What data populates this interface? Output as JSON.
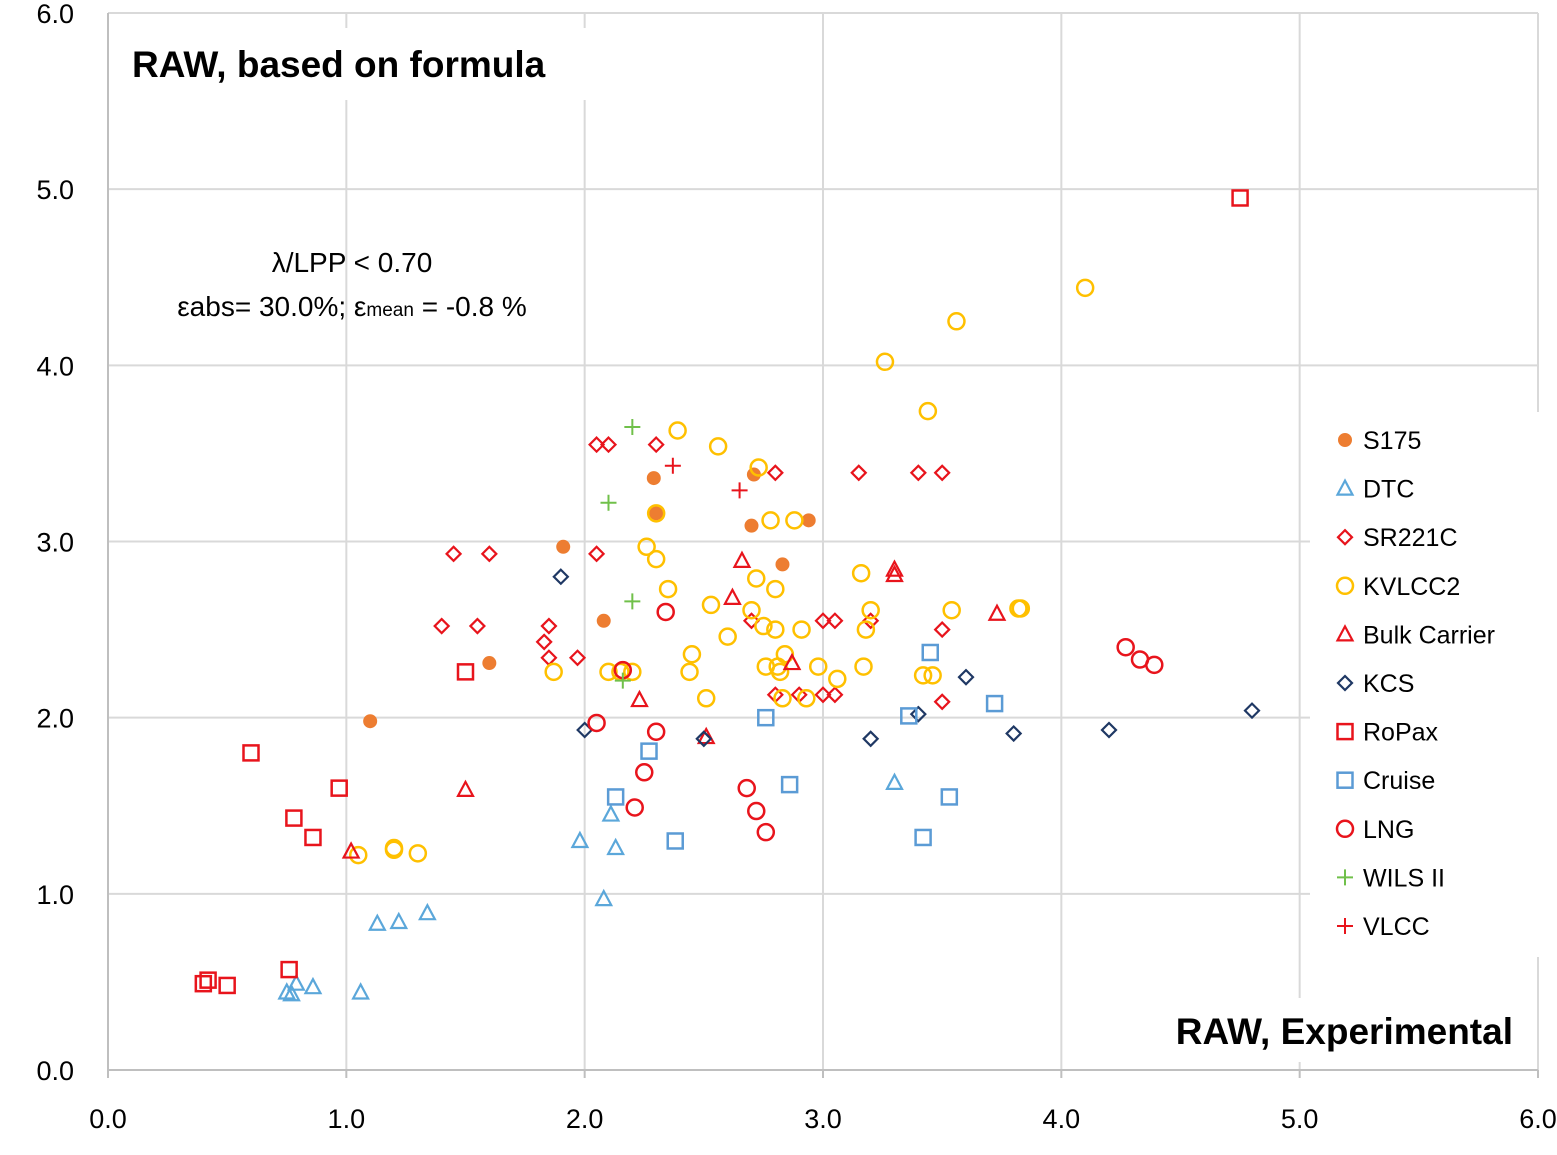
{
  "chart_data": {
    "type": "scatter",
    "title": "RAW, based on formula",
    "xlabel": "RAW, Experimental",
    "ylabel": "",
    "xlim": [
      0,
      6
    ],
    "ylim": [
      0,
      6
    ],
    "grid": true,
    "legend_position": "right",
    "x_ticks": [
      "0.0",
      "1.0",
      "2.0",
      "3.0",
      "4.0",
      "5.0",
      "6.0"
    ],
    "y_ticks": [
      "0.0",
      "1.0",
      "2.0",
      "3.0",
      "4.0",
      "5.0",
      "6.0"
    ],
    "annotation": {
      "line1": "λ/LPP < 0.70",
      "line2_a": "εabs= 30.0%; ε",
      "line2_sub": "mean",
      "line2_b": " = -0.8 %"
    },
    "series": [
      {
        "name": "S175",
        "marker": "filled-circle",
        "color": "#ED7D31",
        "points": [
          [
            1.1,
            1.98
          ],
          [
            1.6,
            2.31
          ],
          [
            1.91,
            2.97
          ],
          [
            2.08,
            2.55
          ],
          [
            2.29,
            3.36
          ],
          [
            2.3,
            3.16
          ],
          [
            2.7,
            3.09
          ],
          [
            2.71,
            3.38
          ],
          [
            2.83,
            2.87
          ],
          [
            2.94,
            3.12
          ]
        ]
      },
      {
        "name": "DTC",
        "marker": "triangle",
        "color": "#5BA7DA",
        "points": [
          [
            0.75,
            0.44
          ],
          [
            0.77,
            0.43
          ],
          [
            0.79,
            0.49
          ],
          [
            0.86,
            0.47
          ],
          [
            1.06,
            0.44
          ],
          [
            1.13,
            0.83
          ],
          [
            1.22,
            0.84
          ],
          [
            1.34,
            0.89
          ],
          [
            1.98,
            1.3
          ],
          [
            2.08,
            0.97
          ],
          [
            2.11,
            1.45
          ],
          [
            2.13,
            1.26
          ],
          [
            3.3,
            1.63
          ]
        ]
      },
      {
        "name": "SR221C",
        "marker": "diamond",
        "color": "#E8141C",
        "points": [
          [
            1.4,
            2.52
          ],
          [
            1.45,
            2.93
          ],
          [
            1.55,
            2.52
          ],
          [
            1.6,
            2.93
          ],
          [
            1.83,
            2.43
          ],
          [
            1.85,
            2.52
          ],
          [
            1.85,
            2.34
          ],
          [
            1.97,
            2.34
          ],
          [
            2.05,
            3.55
          ],
          [
            2.05,
            2.93
          ],
          [
            2.1,
            3.55
          ],
          [
            2.3,
            3.55
          ],
          [
            2.7,
            2.55
          ],
          [
            2.8,
            3.39
          ],
          [
            2.8,
            2.13
          ],
          [
            2.9,
            2.13
          ],
          [
            3.0,
            2.55
          ],
          [
            3.0,
            2.13
          ],
          [
            3.05,
            2.55
          ],
          [
            3.05,
            2.13
          ],
          [
            3.15,
            3.39
          ],
          [
            3.2,
            2.55
          ],
          [
            3.4,
            3.39
          ],
          [
            3.5,
            3.39
          ],
          [
            3.5,
            2.5
          ],
          [
            3.5,
            2.09
          ]
        ]
      },
      {
        "name": "KVLCC2",
        "marker": "circle",
        "color": "#FFC000",
        "points": [
          [
            1.05,
            1.22
          ],
          [
            1.2,
            1.26
          ],
          [
            1.2,
            1.25
          ],
          [
            1.3,
            1.23
          ],
          [
            1.87,
            2.26
          ],
          [
            2.1,
            2.26
          ],
          [
            2.15,
            2.26
          ],
          [
            2.2,
            2.26
          ],
          [
            2.26,
            2.97
          ],
          [
            2.3,
            3.16
          ],
          [
            2.3,
            2.9
          ],
          [
            2.35,
            2.73
          ],
          [
            2.39,
            3.63
          ],
          [
            2.44,
            2.26
          ],
          [
            2.45,
            2.36
          ],
          [
            2.51,
            2.11
          ],
          [
            2.53,
            2.64
          ],
          [
            2.56,
            3.54
          ],
          [
            2.6,
            2.46
          ],
          [
            2.7,
            2.61
          ],
          [
            2.72,
            2.79
          ],
          [
            2.73,
            3.42
          ],
          [
            2.75,
            2.52
          ],
          [
            2.76,
            2.29
          ],
          [
            2.78,
            3.12
          ],
          [
            2.8,
            2.5
          ],
          [
            2.8,
            2.73
          ],
          [
            2.81,
            2.29
          ],
          [
            2.82,
            2.26
          ],
          [
            2.83,
            2.11
          ],
          [
            2.84,
            2.36
          ],
          [
            2.88,
            3.12
          ],
          [
            2.91,
            2.5
          ],
          [
            2.93,
            2.11
          ],
          [
            2.98,
            2.29
          ],
          [
            3.06,
            2.22
          ],
          [
            3.16,
            2.82
          ],
          [
            3.17,
            2.29
          ],
          [
            3.18,
            2.5
          ],
          [
            3.2,
            2.61
          ],
          [
            3.26,
            4.02
          ],
          [
            3.42,
            2.24
          ],
          [
            3.44,
            3.74
          ],
          [
            3.46,
            2.24
          ],
          [
            3.54,
            2.61
          ],
          [
            3.56,
            4.25
          ],
          [
            3.82,
            2.62
          ],
          [
            3.83,
            2.62
          ],
          [
            4.1,
            4.44
          ]
        ]
      },
      {
        "name": "Bulk Carrier",
        "marker": "triangle",
        "color": "#E8141C",
        "points": [
          [
            1.02,
            1.24
          ],
          [
            1.5,
            1.59
          ],
          [
            2.23,
            2.1
          ],
          [
            2.51,
            1.89
          ],
          [
            2.62,
            2.68
          ],
          [
            2.66,
            2.89
          ],
          [
            2.87,
            2.31
          ],
          [
            3.3,
            2.84
          ],
          [
            3.3,
            2.81
          ],
          [
            3.73,
            2.59
          ]
        ]
      },
      {
        "name": "KCS",
        "marker": "diamond",
        "color": "#1F3864",
        "points": [
          [
            1.9,
            2.8
          ],
          [
            2.0,
            1.93
          ],
          [
            2.5,
            1.88
          ],
          [
            3.2,
            1.88
          ],
          [
            3.4,
            2.02
          ],
          [
            3.6,
            2.23
          ],
          [
            3.8,
            1.91
          ],
          [
            4.2,
            1.93
          ],
          [
            4.8,
            2.04
          ]
        ]
      },
      {
        "name": "RoPax",
        "marker": "square",
        "color": "#E8141C",
        "points": [
          [
            0.4,
            0.49
          ],
          [
            0.42,
            0.51
          ],
          [
            0.5,
            0.48
          ],
          [
            0.6,
            1.8
          ],
          [
            0.76,
            0.57
          ],
          [
            0.78,
            1.43
          ],
          [
            0.86,
            1.32
          ],
          [
            0.97,
            1.6
          ],
          [
            1.5,
            2.26
          ],
          [
            4.75,
            4.95
          ]
        ]
      },
      {
        "name": "Cruise",
        "marker": "square",
        "color": "#5B9BD5",
        "points": [
          [
            2.13,
            1.55
          ],
          [
            2.27,
            1.81
          ],
          [
            2.38,
            1.3
          ],
          [
            2.76,
            2.0
          ],
          [
            2.86,
            1.62
          ],
          [
            3.36,
            2.01
          ],
          [
            3.42,
            1.32
          ],
          [
            3.45,
            2.37
          ],
          [
            3.53,
            1.55
          ],
          [
            3.72,
            2.08
          ]
        ]
      },
      {
        "name": "LNG",
        "marker": "circle",
        "color": "#E8141C",
        "points": [
          [
            2.05,
            1.97
          ],
          [
            2.16,
            2.27
          ],
          [
            2.21,
            1.49
          ],
          [
            2.25,
            1.69
          ],
          [
            2.3,
            1.92
          ],
          [
            2.34,
            2.6
          ],
          [
            2.68,
            1.6
          ],
          [
            2.72,
            1.47
          ],
          [
            2.76,
            1.35
          ],
          [
            4.27,
            2.4
          ],
          [
            4.33,
            2.33
          ],
          [
            4.39,
            2.3
          ]
        ]
      },
      {
        "name": "WILS II",
        "marker": "plus",
        "color": "#70C04A",
        "points": [
          [
            2.1,
            3.22
          ],
          [
            2.16,
            2.21
          ],
          [
            2.2,
            3.65
          ],
          [
            2.2,
            2.66
          ]
        ]
      },
      {
        "name": "VLCC",
        "marker": "plus",
        "color": "#E8141C",
        "points": [
          [
            2.37,
            3.43
          ],
          [
            2.65,
            3.29
          ]
        ]
      }
    ]
  }
}
